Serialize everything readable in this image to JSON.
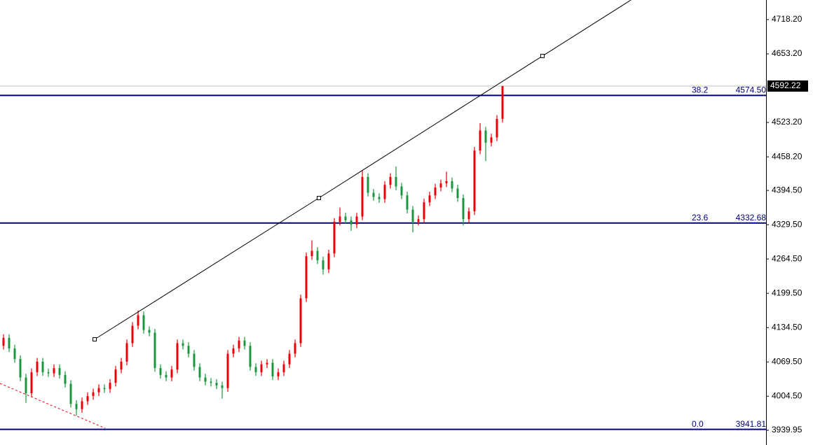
{
  "chart_data": {
    "type": "candlestick",
    "bull_color": "#e8000b",
    "bear_color": "#1a9641",
    "xlim": [
      -0.625,
      136
    ],
    "ylim": [
      3912.1,
      4755.3
    ],
    "yticks": [
      {
        "value": 4718.2,
        "label": "4718.20"
      },
      {
        "value": 4653.2,
        "label": "4653.20"
      },
      {
        "value": 4523.2,
        "label": "4523.20"
      },
      {
        "value": 4458.2,
        "label": "4458.20"
      },
      {
        "value": 4394.5,
        "label": "4394.50"
      },
      {
        "value": 4329.5,
        "label": "4329.50"
      },
      {
        "value": 4264.5,
        "label": "4264.50"
      },
      {
        "value": 4199.5,
        "label": "4199.50"
      },
      {
        "value": 4134.5,
        "label": "4134.50"
      },
      {
        "value": 4069.5,
        "label": "4069.50"
      },
      {
        "value": 4004.5,
        "label": "4004.50"
      },
      {
        "value": 3939.95,
        "label": "3939.95"
      }
    ],
    "open": [
      4100,
      4115,
      4095,
      4075,
      4040,
      4010,
      4050,
      4070,
      4050,
      4048,
      4058,
      4045,
      4028,
      3990,
      3980,
      3995,
      4005,
      4012,
      4020,
      4018,
      4030,
      4055,
      4070,
      4105,
      4138,
      4158,
      4130,
      4125,
      4058,
      4045,
      4040,
      4055,
      4105,
      4100,
      4085,
      4060,
      4040,
      4032,
      4030,
      4025,
      4020,
      4085,
      4095,
      4110,
      4100,
      4060,
      4050,
      4065,
      4068,
      4042,
      4050,
      4065,
      4085,
      4105,
      4190,
      4270,
      4280,
      4262,
      4245,
      4275,
      4335,
      4345,
      4338,
      4330,
      4345,
      4420,
      4390,
      4382,
      4378,
      4405,
      4420,
      4402,
      4385,
      4358,
      4335,
      4340,
      4372,
      4385,
      4400,
      4408,
      4412,
      4398,
      4380,
      4340,
      4355,
      4470,
      4508,
      4485,
      4495,
      4530
    ],
    "high": [
      4122,
      4122,
      4102,
      4082,
      4047,
      4057,
      4077,
      4077,
      4057,
      4065,
      4065,
      4052,
      4035,
      3997,
      4002,
      4012,
      4019,
      4027,
      4027,
      4037,
      4062,
      4077,
      4112,
      4145,
      4167,
      4165,
      4137,
      4132,
      4065,
      4052,
      4062,
      4112,
      4112,
      4107,
      4092,
      4067,
      4047,
      4039,
      4037,
      4032,
      4092,
      4102,
      4117,
      4117,
      4107,
      4067,
      4072,
      4075,
      4075,
      4057,
      4072,
      4092,
      4112,
      4197,
      4277,
      4300,
      4287,
      4269,
      4282,
      4342,
      4362,
      4352,
      4345,
      4352,
      4432,
      4427,
      4397,
      4389,
      4412,
      4427,
      4440,
      4409,
      4392,
      4365,
      4347,
      4379,
      4392,
      4407,
      4415,
      4430,
      4419,
      4405,
      4387,
      4362,
      4477,
      4522,
      4515,
      4502,
      4537,
      4592.22
    ],
    "low": [
      4093,
      4088,
      4068,
      4033,
      3992,
      4003,
      4043,
      4043,
      4041,
      4041,
      4038,
      4021,
      3983,
      3968,
      3973,
      3988,
      3998,
      4005,
      4011,
      4011,
      4023,
      4048,
      4063,
      4098,
      4131,
      4123,
      4118,
      4051,
      4038,
      4033,
      4033,
      4048,
      4093,
      4078,
      4053,
      4033,
      4025,
      4023,
      4018,
      4000,
      4013,
      4078,
      4088,
      4093,
      4053,
      4043,
      4043,
      4058,
      4035,
      4035,
      4043,
      4058,
      4078,
      4098,
      4183,
      4263,
      4255,
      4235,
      4238,
      4268,
      4328,
      4331,
      4318,
      4323,
      4338,
      4383,
      4375,
      4371,
      4371,
      4398,
      4395,
      4378,
      4351,
      4315,
      4328,
      4333,
      4365,
      4378,
      4393,
      4401,
      4391,
      4373,
      4328,
      4333,
      4348,
      4463,
      4450,
      4478,
      4488,
      4523
    ],
    "close": [
      4115,
      4095,
      4075,
      4040,
      4010,
      4050,
      4070,
      4050,
      4048,
      4058,
      4045,
      4028,
      3990,
      3980,
      3995,
      4005,
      4012,
      4020,
      4018,
      4030,
      4055,
      4070,
      4105,
      4138,
      4158,
      4130,
      4125,
      4058,
      4045,
      4040,
      4055,
      4105,
      4100,
      4085,
      4060,
      4040,
      4032,
      4030,
      4025,
      4020,
      4085,
      4095,
      4110,
      4100,
      4060,
      4050,
      4065,
      4068,
      4042,
      4050,
      4065,
      4085,
      4105,
      4190,
      4270,
      4280,
      4262,
      4245,
      4275,
      4335,
      4345,
      4338,
      4330,
      4345,
      4420,
      4390,
      4382,
      4378,
      4405,
      4420,
      4402,
      4385,
      4358,
      4335,
      4340,
      4372,
      4385,
      4400,
      4408,
      4412,
      4398,
      4380,
      4340,
      4355,
      4470,
      4508,
      4485,
      4495,
      4530,
      4592.22
    ],
    "current_price": {
      "value": 4592.22,
      "label": "4592.22"
    },
    "levels": [
      {
        "ratio": "38.2",
        "value": 4574.5,
        "label": "4574.50"
      },
      {
        "ratio": "23.6",
        "value": 4332.68,
        "label": "4332.68"
      },
      {
        "ratio": "0.0",
        "value": 3941.81,
        "label": "3941.81"
      }
    ],
    "trendline": {
      "x": [
        16.25,
        56.25,
        96.125
      ],
      "values": [
        4112.3,
        4380.1,
        4649.2
      ]
    },
    "dashed_line": {
      "x": [
        -0.625,
        18.125
      ],
      "values": [
        4028.8,
        3943.9
      ]
    }
  }
}
